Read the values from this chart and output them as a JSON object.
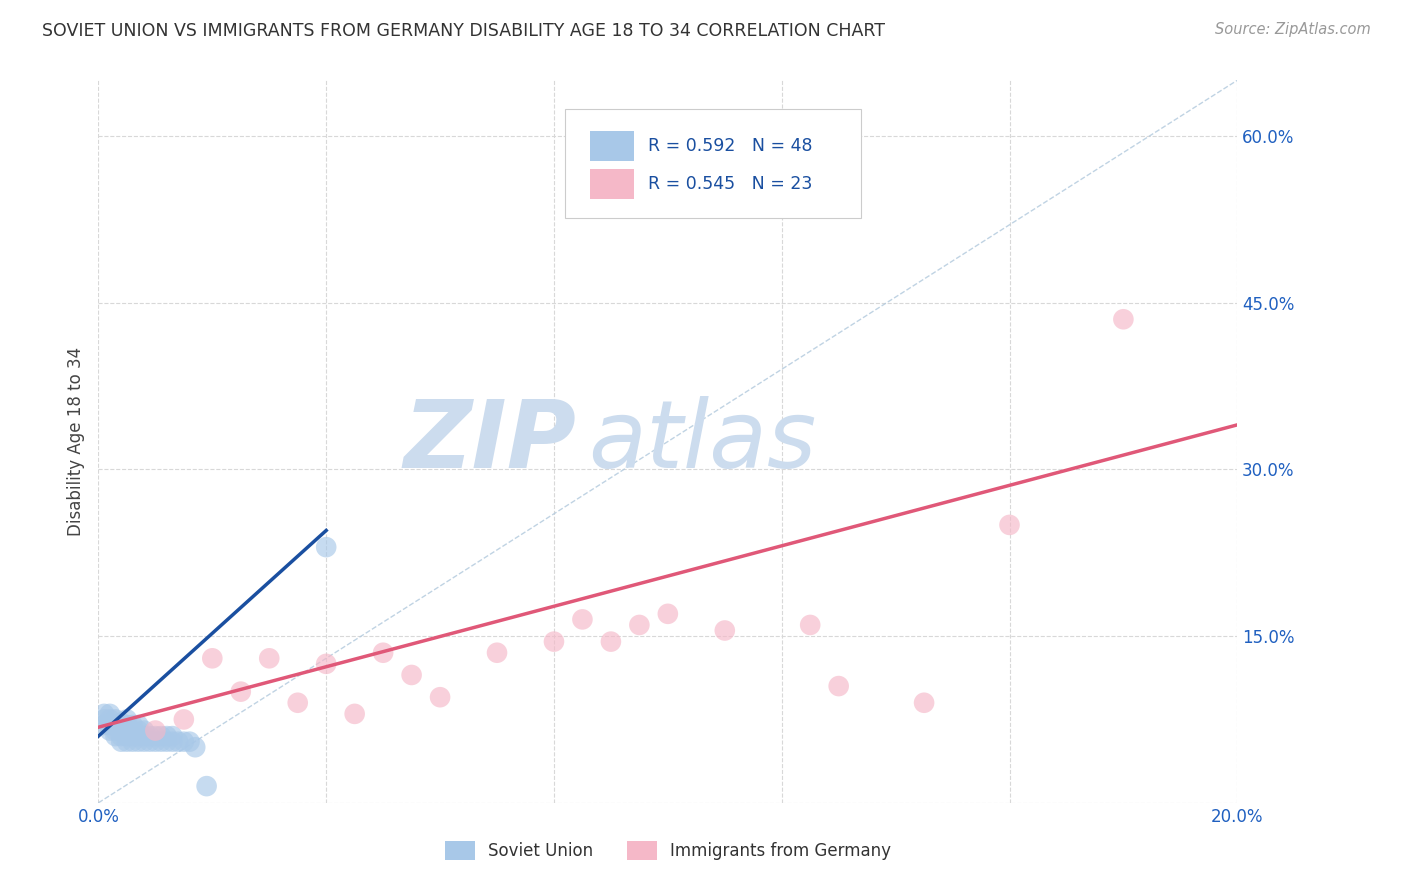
{
  "title": "SOVIET UNION VS IMMIGRANTS FROM GERMANY DISABILITY AGE 18 TO 34 CORRELATION CHART",
  "source": "Source: ZipAtlas.com",
  "ylabel": "Disability Age 18 to 34",
  "xlim": [
    0.0,
    0.2
  ],
  "ylim": [
    0.0,
    0.65
  ],
  "x_ticks": [
    0.0,
    0.04,
    0.08,
    0.12,
    0.16,
    0.2
  ],
  "x_tick_labels": [
    "0.0%",
    "",
    "",
    "",
    "",
    "20.0%"
  ],
  "y_ticks": [
    0.0,
    0.15,
    0.3,
    0.45,
    0.6
  ],
  "y_tick_labels": [
    "",
    "15.0%",
    "30.0%",
    "45.0%",
    "60.0%"
  ],
  "soviet_R": 0.592,
  "soviet_N": 48,
  "germany_R": 0.545,
  "germany_N": 23,
  "soviet_color": "#a8c8e8",
  "soviet_line_color": "#1a4fa0",
  "germany_color": "#f5b8c8",
  "germany_line_color": "#e05878",
  "soviet_scatter_x": [
    0.001,
    0.001,
    0.001,
    0.002,
    0.002,
    0.002,
    0.002,
    0.003,
    0.003,
    0.003,
    0.003,
    0.004,
    0.004,
    0.004,
    0.004,
    0.004,
    0.005,
    0.005,
    0.005,
    0.005,
    0.005,
    0.006,
    0.006,
    0.006,
    0.006,
    0.007,
    0.007,
    0.007,
    0.007,
    0.008,
    0.008,
    0.008,
    0.009,
    0.009,
    0.01,
    0.01,
    0.011,
    0.011,
    0.012,
    0.012,
    0.013,
    0.013,
    0.014,
    0.015,
    0.016,
    0.017,
    0.019,
    0.04
  ],
  "soviet_scatter_y": [
    0.07,
    0.075,
    0.08,
    0.065,
    0.07,
    0.075,
    0.08,
    0.06,
    0.065,
    0.07,
    0.075,
    0.055,
    0.06,
    0.065,
    0.068,
    0.072,
    0.055,
    0.06,
    0.065,
    0.07,
    0.075,
    0.055,
    0.06,
    0.065,
    0.07,
    0.055,
    0.06,
    0.065,
    0.07,
    0.055,
    0.06,
    0.065,
    0.055,
    0.06,
    0.055,
    0.06,
    0.055,
    0.06,
    0.055,
    0.06,
    0.055,
    0.06,
    0.055,
    0.055,
    0.055,
    0.05,
    0.015,
    0.23
  ],
  "germany_scatter_x": [
    0.01,
    0.015,
    0.02,
    0.025,
    0.03,
    0.035,
    0.04,
    0.045,
    0.05,
    0.055,
    0.06,
    0.07,
    0.08,
    0.085,
    0.09,
    0.095,
    0.1,
    0.11,
    0.13,
    0.16,
    0.18,
    0.125,
    0.145
  ],
  "germany_scatter_y": [
    0.065,
    0.075,
    0.13,
    0.1,
    0.13,
    0.09,
    0.125,
    0.08,
    0.135,
    0.115,
    0.095,
    0.135,
    0.145,
    0.165,
    0.145,
    0.16,
    0.17,
    0.155,
    0.105,
    0.25,
    0.435,
    0.16,
    0.09
  ],
  "background_color": "#ffffff",
  "grid_color": "#d8d8d8",
  "watermark_zip": "ZIP",
  "watermark_atlas": "atlas",
  "watermark_color": "#ccdcee",
  "legend_color": "#1a4fa0",
  "dash_color": "#b0c8dc"
}
